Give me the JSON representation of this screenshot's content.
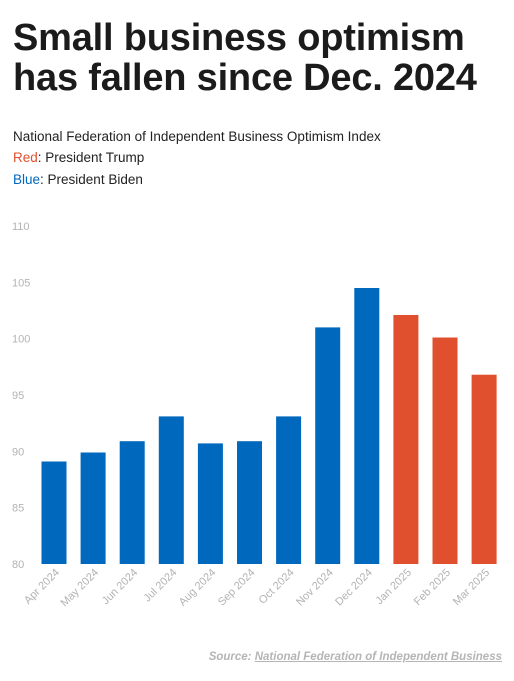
{
  "headline": "Small business optimism has fallen since Dec. 2024",
  "subtitle": "National Federation of Independent Business Optimism Index",
  "legend": {
    "red_key": "Red",
    "red_text": ": President Trump",
    "blue_key": "Blue",
    "blue_text": ": President Biden"
  },
  "source": {
    "label": "Source:",
    "link_text": "National Federation of Independent Business"
  },
  "colors": {
    "biden": "#0068bd",
    "trump": "#e0502e",
    "axis_text": "#b3b3b3"
  },
  "chart_data": {
    "type": "bar",
    "categories": [
      "Apr 2024",
      "May 2024",
      "Jun 2024",
      "Jul 2024",
      "Aug 2024",
      "Sep 2024",
      "Oct 2024",
      "Nov 2024",
      "Dec 2024",
      "Jan 2025",
      "Feb 2025",
      "Mar 2025"
    ],
    "values": [
      89.1,
      89.9,
      90.9,
      93.1,
      90.7,
      90.9,
      93.1,
      101.0,
      104.5,
      102.1,
      100.1,
      96.8
    ],
    "president": [
      "Biden",
      "Biden",
      "Biden",
      "Biden",
      "Biden",
      "Biden",
      "Biden",
      "Biden",
      "Biden",
      "Trump",
      "Trump",
      "Trump"
    ],
    "ylim": [
      80,
      110
    ],
    "yticks": [
      80,
      85,
      90,
      95,
      100,
      105,
      110
    ],
    "grid": false,
    "title": "National Federation of Independent Business Optimism Index"
  }
}
